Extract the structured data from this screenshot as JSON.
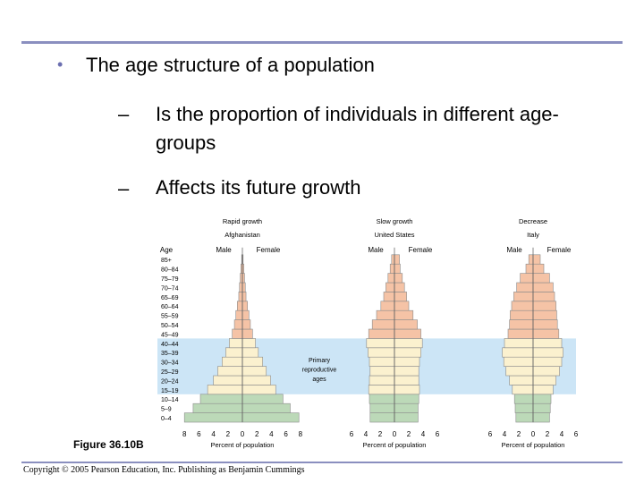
{
  "slide": {
    "bullet": "The age structure of a population",
    "sub_items": [
      "Is the proportion of individuals in different age-groups",
      "Affects its future growth"
    ],
    "dash": "–",
    "bullet_symbol": "•",
    "figure_label": "Figure 36.10B",
    "copyright": "Copyright © 2005 Pearson Education, Inc. Publishing as Benjamin Cummings"
  },
  "chart_data": {
    "type": "bar",
    "orientation": "horizontal",
    "age_axis_label": "Age",
    "age_groups": [
      "0–4",
      "5–9",
      "10–14",
      "15–19",
      "20–24",
      "25–29",
      "30–34",
      "35–39",
      "40–44",
      "45–49",
      "50–54",
      "55–59",
      "60–64",
      "65–69",
      "70–74",
      "75–79",
      "80–84",
      "85+"
    ],
    "xlabel": "Percent of population",
    "x_ticks": [
      8,
      6,
      4,
      2,
      0,
      2,
      4,
      6,
      8
    ],
    "highlight_band": {
      "label": "Primary reproductive ages",
      "label_lines": [
        "Primary",
        "reproductive",
        "ages"
      ],
      "from_group": "15–19",
      "to_group": "40–44",
      "color": "#cce5f6"
    },
    "colors": {
      "pre_reproductive": "#bcd9b8",
      "reproductive": "#fbf1cf",
      "post_reproductive": "#f5c3a6"
    },
    "pyramids": [
      {
        "growth": "Rapid growth",
        "country": "Afghanistan",
        "male_label": "Male",
        "female_label": "Female",
        "x_ticks": [
          8,
          6,
          4,
          2,
          0,
          2,
          4,
          6,
          8
        ],
        "male": [
          8.0,
          6.8,
          5.8,
          4.8,
          4.0,
          3.4,
          2.8,
          2.3,
          1.8,
          1.4,
          1.1,
          0.9,
          0.7,
          0.5,
          0.4,
          0.3,
          0.2,
          0.1
        ],
        "female": [
          7.8,
          6.6,
          5.6,
          4.6,
          3.9,
          3.3,
          2.8,
          2.2,
          1.8,
          1.4,
          1.1,
          0.9,
          0.7,
          0.5,
          0.4,
          0.3,
          0.2,
          0.1
        ]
      },
      {
        "growth": "Slow growth",
        "country": "United States",
        "male_label": "Male",
        "female_label": "Female",
        "x_ticks": [
          6,
          4,
          2,
          0,
          2,
          4,
          6
        ],
        "male": [
          3.4,
          3.4,
          3.5,
          3.6,
          3.5,
          3.4,
          3.5,
          3.7,
          3.9,
          3.6,
          3.1,
          2.5,
          1.9,
          1.5,
          1.2,
          0.9,
          0.6,
          0.4
        ],
        "female": [
          3.3,
          3.3,
          3.4,
          3.5,
          3.4,
          3.4,
          3.5,
          3.7,
          3.9,
          3.7,
          3.2,
          2.6,
          2.0,
          1.7,
          1.4,
          1.1,
          0.8,
          0.7
        ]
      },
      {
        "growth": "Decrease",
        "country": "Italy",
        "male_label": "Male",
        "female_label": "Female",
        "x_ticks": [
          6,
          4,
          2,
          0,
          2,
          4,
          6
        ],
        "male": [
          2.4,
          2.5,
          2.6,
          2.9,
          3.3,
          3.8,
          4.1,
          4.3,
          4.0,
          3.5,
          3.3,
          3.2,
          3.0,
          2.7,
          2.3,
          1.8,
          1.0,
          0.6
        ],
        "female": [
          2.3,
          2.4,
          2.5,
          2.8,
          3.2,
          3.7,
          4.0,
          4.2,
          4.0,
          3.6,
          3.4,
          3.3,
          3.2,
          3.0,
          2.8,
          2.3,
          1.5,
          1.0
        ]
      }
    ]
  }
}
